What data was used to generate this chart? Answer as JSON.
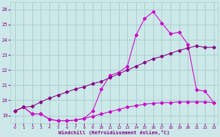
{
  "xlabel": "Windchill (Refroidissement éolien,°C)",
  "x_ticks": [
    0,
    1,
    2,
    3,
    4,
    5,
    6,
    7,
    8,
    9,
    10,
    11,
    12,
    13,
    14,
    15,
    16,
    17,
    18,
    19,
    20,
    21,
    22,
    23
  ],
  "ylim": [
    18.5,
    26.5
  ],
  "xlim": [
    -0.5,
    23.5
  ],
  "yticks": [
    19,
    20,
    21,
    22,
    23,
    24,
    25,
    26
  ],
  "background_color": "#cce8e8",
  "grid_color": "#aacece",
  "line_color_bright": "#cc00cc",
  "line_color_dark": "#880088",
  "curve1_x": [
    0,
    1,
    2,
    3,
    4,
    5,
    6,
    7,
    8,
    9,
    10,
    11,
    12,
    13,
    14,
    15,
    16,
    17,
    18,
    19,
    20,
    21,
    22,
    23
  ],
  "curve1_y": [
    19.3,
    19.55,
    19.1,
    19.1,
    18.75,
    18.65,
    18.65,
    18.7,
    18.8,
    18.95,
    19.1,
    19.25,
    19.4,
    19.55,
    19.65,
    19.75,
    19.8,
    19.85,
    19.85,
    19.9,
    19.9,
    19.9,
    19.9,
    19.85
  ],
  "curve2_x": [
    0,
    1,
    2,
    3,
    4,
    5,
    6,
    7,
    8,
    9,
    10,
    11,
    12,
    13,
    14,
    15,
    16,
    17,
    18,
    19,
    20,
    21,
    22,
    23
  ],
  "curve2_y": [
    19.3,
    19.55,
    19.1,
    19.1,
    18.75,
    18.65,
    18.65,
    18.7,
    18.8,
    19.3,
    20.75,
    21.65,
    21.85,
    22.25,
    24.3,
    25.4,
    25.85,
    25.1,
    24.4,
    24.5,
    23.7,
    20.7,
    20.6,
    19.85
  ],
  "curve3_x": [
    0,
    1,
    2,
    3,
    4,
    5,
    6,
    7,
    8,
    9,
    10,
    11,
    12,
    13,
    14,
    15,
    16,
    17,
    18,
    19,
    20,
    21,
    22,
    23
  ],
  "curve3_y": [
    19.3,
    19.55,
    19.6,
    19.9,
    20.15,
    20.35,
    20.55,
    20.75,
    20.9,
    21.1,
    21.25,
    21.5,
    21.75,
    22.0,
    22.25,
    22.5,
    22.75,
    22.9,
    23.1,
    23.3,
    23.45,
    23.6,
    23.5,
    23.5
  ]
}
